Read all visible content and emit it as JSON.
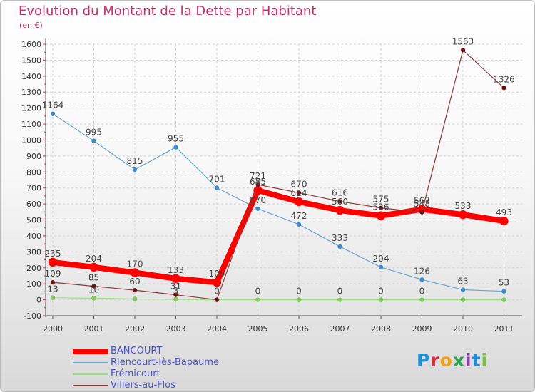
{
  "title": "Evolution du Montant de la Dette par Habitant",
  "unit_label": "(en €)",
  "logo_text": "Proxiti",
  "logo_colors": [
    "#1f8fd6",
    "#e2263f",
    "#f2a20c",
    "#2aa44a",
    "#8b3fa8",
    "#1f8fd6",
    "#7ac143"
  ],
  "chart_data": {
    "type": "line",
    "title": "Evolution du Montant de la Dette par Habitant",
    "ylabel": "(en €)",
    "x": [
      "2000",
      "2001",
      "2002",
      "2003",
      "2004",
      "2005",
      "2006",
      "2007",
      "2008",
      "2009",
      "2010",
      "2011"
    ],
    "ylim": [
      -100,
      1600
    ],
    "yticks": [
      -100,
      0,
      100,
      200,
      300,
      400,
      500,
      600,
      700,
      800,
      900,
      1000,
      1100,
      1200,
      1300,
      1400,
      1500,
      1600
    ],
    "grid": true,
    "legend_position": "bottom-left",
    "series": [
      {
        "name": "BANCOURT",
        "color": "#ff0000",
        "marker_color": "#ff0000",
        "values": [
          235,
          204,
          170,
          133,
          109,
          685,
          614,
          560,
          526,
          567,
          533,
          493
        ]
      },
      {
        "name": "Riencourt-lès-Bapaume",
        "color": "#6aa7cf",
        "marker_color": "#3b8fd1",
        "values": [
          1164,
          995,
          815,
          955,
          701,
          570,
          472,
          333,
          204,
          126,
          63,
          53
        ]
      },
      {
        "name": "Frémicourt",
        "color": "#93e27a",
        "marker_color": "#7fcf58",
        "values": [
          13,
          10,
          5,
          3,
          0,
          0,
          0,
          0,
          0,
          0,
          0,
          0
        ]
      },
      {
        "name": "Villers-au-Flos",
        "color": "#8c3a3a",
        "marker_color": "#6b0f0f",
        "values": [
          109,
          85,
          60,
          31,
          0,
          721,
          670,
          616,
          575,
          548,
          1563,
          1326
        ]
      }
    ],
    "point_labels": {
      "BANCOURT": [
        "235",
        "204",
        "170",
        "133",
        "109",
        "685",
        "614",
        "560",
        "526",
        "567",
        "533",
        "493"
      ],
      "Riencourt-lès-Bapaume": [
        "1164",
        "995",
        "815",
        "955",
        "701",
        "570",
        "472",
        "333",
        "204",
        "126",
        "63",
        "53"
      ],
      "Frémicourt": [
        "13",
        "10",
        "",
        "3",
        "0",
        "0",
        "0",
        "0",
        "0",
        "0",
        "",
        ""
      ],
      "Villers-au-Flos": [
        "109",
        "85",
        "60",
        "31",
        "",
        "721",
        "670",
        "616",
        "575",
        "548",
        "1563",
        "1326"
      ]
    }
  }
}
